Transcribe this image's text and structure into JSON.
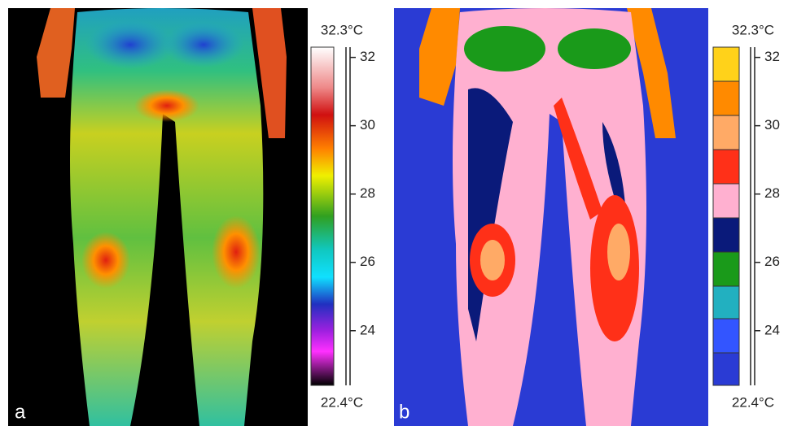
{
  "panels": [
    {
      "label": "a",
      "scale": {
        "max": {
          "value": 32.3,
          "label": "32.3°C"
        },
        "min": {
          "value": 22.4,
          "label": "22.4°C"
        },
        "ticks": [
          32,
          30,
          28,
          26,
          24
        ]
      }
    },
    {
      "label": "b",
      "scale": {
        "max": {
          "value": 32.3,
          "label": "32.3°C"
        },
        "min": {
          "value": 22.4,
          "label": "22.4°C"
        },
        "ticks": [
          32,
          30,
          28,
          26,
          24
        ]
      }
    }
  ]
}
